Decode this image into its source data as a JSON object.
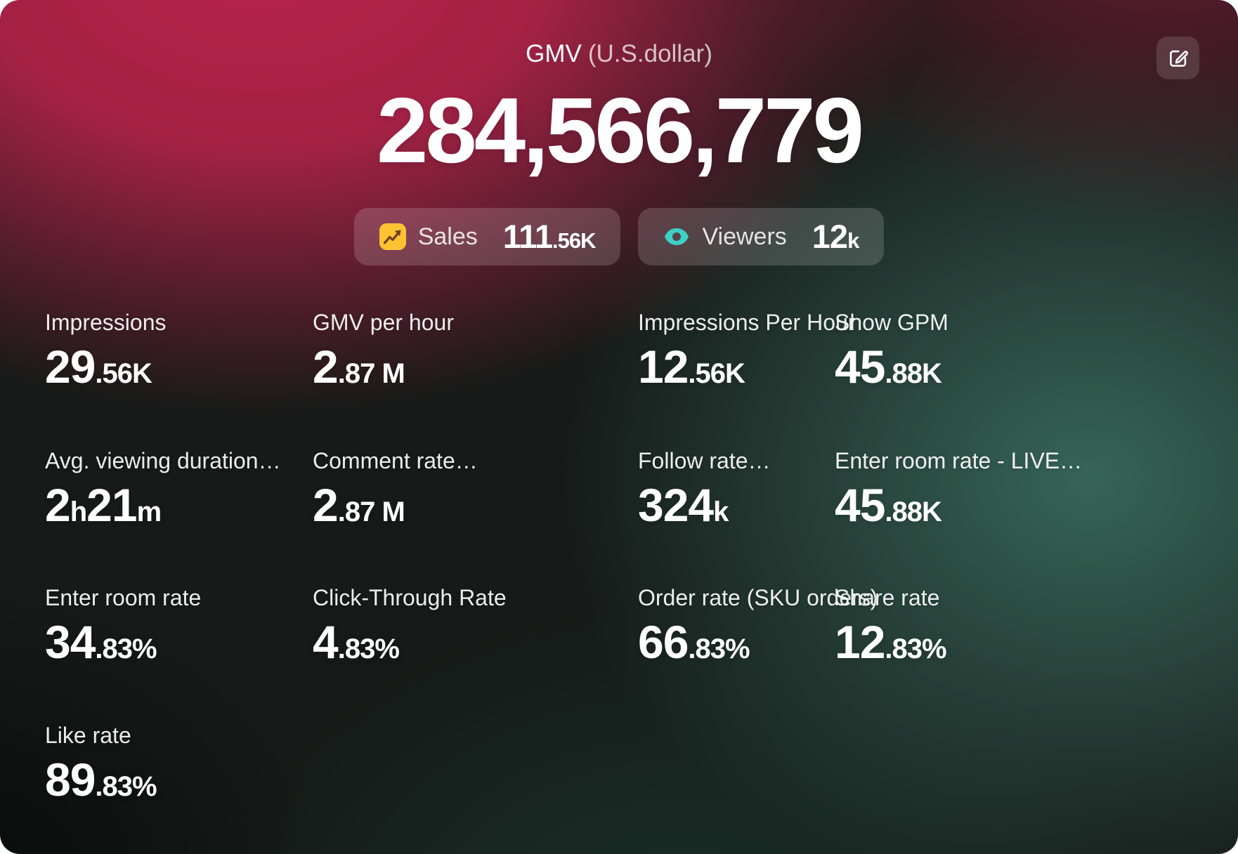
{
  "header": {
    "title": "GMV",
    "unit": "(U.S.dollar)",
    "value": "284,566,779"
  },
  "edit_button": {
    "icon": "edit-square-icon"
  },
  "badges": [
    {
      "label": "Sales",
      "value_major": "111",
      "value_minor": ".56K",
      "icon": "sales-trending-up-icon",
      "icon_bg": "#FFC233",
      "icon_fg": "#6B4423"
    },
    {
      "label": "Viewers",
      "value_major": "12",
      "value_minor": "k",
      "icon": "viewers-eye-icon",
      "icon_color": "#3ECFC5"
    }
  ],
  "metrics": [
    {
      "label": "Impressions",
      "col": 0,
      "row": 0,
      "parts": [
        {
          "t": "29",
          "size": "lg"
        },
        {
          "t": ".56K",
          "size": "sm"
        }
      ]
    },
    {
      "label": "GMV per hour",
      "col": 1,
      "row": 0,
      "parts": [
        {
          "t": "2",
          "size": "lg"
        },
        {
          "t": ".87 M",
          "size": "sm"
        }
      ]
    },
    {
      "label": "Impressions Per Hour",
      "col": 2,
      "row": 0,
      "parts": [
        {
          "t": "12",
          "size": "lg"
        },
        {
          "t": ".56K",
          "size": "sm"
        }
      ]
    },
    {
      "label": "Show GPM",
      "col": 3,
      "row": 0,
      "parts": [
        {
          "t": "45",
          "size": "lg"
        },
        {
          "t": ".88K",
          "size": "sm"
        }
      ]
    },
    {
      "label": "Avg. viewing duration…",
      "col": 0,
      "row": 1,
      "parts": [
        {
          "t": "2",
          "size": "lg"
        },
        {
          "t": "h",
          "size": "sm"
        },
        {
          "t": "21",
          "size": "lg"
        },
        {
          "t": "m",
          "size": "sm"
        }
      ]
    },
    {
      "label": "Comment rate…",
      "col": 1,
      "row": 1,
      "parts": [
        {
          "t": "2",
          "size": "lg"
        },
        {
          "t": ".87 M",
          "size": "sm"
        }
      ]
    },
    {
      "label": "Follow rate…",
      "col": 2,
      "row": 1,
      "parts": [
        {
          "t": "324",
          "size": "lg"
        },
        {
          "t": "k",
          "size": "sm"
        }
      ]
    },
    {
      "label": "Enter room rate - LIVE…",
      "col": 3,
      "row": 1,
      "parts": [
        {
          "t": "45",
          "size": "lg"
        },
        {
          "t": ".88K",
          "size": "sm"
        }
      ]
    },
    {
      "label": "Enter room rate",
      "col": 0,
      "row": 2,
      "parts": [
        {
          "t": "34",
          "size": "lg"
        },
        {
          "t": ".83%",
          "size": "sm"
        }
      ]
    },
    {
      "label": "Click-Through Rate",
      "col": 1,
      "row": 2,
      "parts": [
        {
          "t": "4",
          "size": "lg"
        },
        {
          "t": ".83%",
          "size": "sm"
        }
      ]
    },
    {
      "label": "Order rate (SKU orders)",
      "col": 2,
      "row": 2,
      "parts": [
        {
          "t": "66",
          "size": "lg"
        },
        {
          "t": ".83%",
          "size": "sm"
        }
      ]
    },
    {
      "label": "Share rate",
      "col": 3,
      "row": 2,
      "parts": [
        {
          "t": "12",
          "size": "lg"
        },
        {
          "t": ".83%",
          "size": "sm"
        }
      ]
    },
    {
      "label": "Like rate",
      "col": 0,
      "row": 3,
      "parts": [
        {
          "t": "89",
          "size": "lg"
        },
        {
          "t": ".83%",
          "size": "sm"
        }
      ]
    }
  ],
  "colors": {
    "accent_red": "#B8234C",
    "accent_teal": "#3ECFC5",
    "icon_yellow": "#FFC233",
    "badge_bg": "rgba(255,255,255,0.16)"
  }
}
